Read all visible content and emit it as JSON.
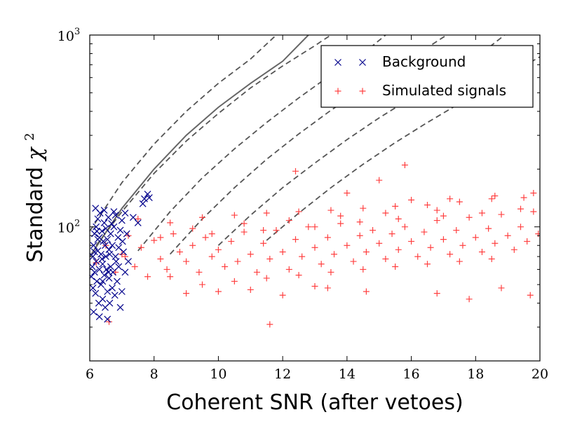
{
  "chart_data": {
    "type": "scatter",
    "title": "",
    "xlabel": "Coherent SNR (after vetoes)",
    "ylabel_text": "Standard",
    "ylabel_symbol": "χ",
    "ylabel_exponent": "2",
    "xlim": [
      6,
      20
    ],
    "ylim": [
      20,
      1000
    ],
    "yscale": "log",
    "x_ticks": [
      "6",
      "8",
      "10",
      "12",
      "14",
      "16",
      "18",
      "20"
    ],
    "y_ticks": [
      {
        "base": "10",
        "exponent": "2",
        "value": 100
      },
      {
        "base": "10",
        "exponent": "3",
        "value": 1000
      }
    ],
    "grid": false,
    "legend_position": "top-right",
    "series": [
      {
        "name": "Background",
        "marker": "x",
        "color": "#00008b",
        "points": [
          [
            6.05,
            55
          ],
          [
            6.08,
            62
          ],
          [
            6.1,
            48
          ],
          [
            6.1,
            70
          ],
          [
            6.12,
            80
          ],
          [
            6.15,
            58
          ],
          [
            6.15,
            92
          ],
          [
            6.18,
            45
          ],
          [
            6.2,
            66
          ],
          [
            6.2,
            100
          ],
          [
            6.22,
            52
          ],
          [
            6.25,
            75
          ],
          [
            6.25,
            110
          ],
          [
            6.28,
            40
          ],
          [
            6.3,
            60
          ],
          [
            6.3,
            88
          ],
          [
            6.32,
            118
          ],
          [
            6.35,
            50
          ],
          [
            6.35,
            72
          ],
          [
            6.38,
            95
          ],
          [
            6.4,
            42
          ],
          [
            6.4,
            64
          ],
          [
            6.42,
            84
          ],
          [
            6.45,
            105
          ],
          [
            6.45,
            56
          ],
          [
            6.48,
            38
          ],
          [
            6.5,
            70
          ],
          [
            6.5,
            98
          ],
          [
            6.52,
            60
          ],
          [
            6.55,
            46
          ],
          [
            6.55,
            86
          ],
          [
            6.58,
            112
          ],
          [
            6.6,
            54
          ],
          [
            6.6,
            76
          ],
          [
            6.62,
            40
          ],
          [
            6.65,
            92
          ],
          [
            6.65,
            62
          ],
          [
            6.68,
            104
          ],
          [
            6.7,
            48
          ],
          [
            6.7,
            80
          ],
          [
            6.72,
            58
          ],
          [
            6.75,
            100
          ],
          [
            6.78,
            44
          ],
          [
            6.8,
            70
          ],
          [
            6.8,
            115
          ],
          [
            6.85,
            52
          ],
          [
            6.88,
            88
          ],
          [
            6.9,
            62
          ],
          [
            6.95,
            96
          ],
          [
            7.0,
            46
          ],
          [
            7.0,
            108
          ],
          [
            7.05,
            74
          ],
          [
            7.1,
            58
          ],
          [
            7.15,
            92
          ],
          [
            7.2,
            66
          ],
          [
            6.12,
            36
          ],
          [
            6.3,
            34
          ],
          [
            6.55,
            33
          ],
          [
            6.95,
            38
          ],
          [
            6.18,
            125
          ],
          [
            6.45,
            122
          ],
          [
            6.75,
            120
          ],
          [
            7.1,
            118
          ],
          [
            7.35,
            112
          ],
          [
            7.65,
            132
          ],
          [
            7.7,
            140
          ],
          [
            7.8,
            148
          ],
          [
            7.85,
            142
          ],
          [
            7.5,
            105
          ],
          [
            6.22,
            95
          ],
          [
            6.38,
            68
          ],
          [
            6.48,
            80
          ],
          [
            6.62,
            72
          ],
          [
            6.82,
            66
          ],
          [
            6.4,
            52
          ],
          [
            6.25,
            86
          ],
          [
            6.58,
            58
          ],
          [
            6.9,
            78
          ],
          [
            7.02,
            84
          ],
          [
            6.15,
            74
          ]
        ]
      },
      {
        "name": "Simulated signals",
        "marker": "+",
        "color": "#ff4040",
        "points": [
          [
            6.2,
            65
          ],
          [
            6.5,
            80
          ],
          [
            6.8,
            58
          ],
          [
            7.0,
            72
          ],
          [
            7.2,
            90
          ],
          [
            7.4,
            62
          ],
          [
            7.6,
            78
          ],
          [
            7.8,
            55
          ],
          [
            8.0,
            85
          ],
          [
            8.2,
            68
          ],
          [
            8.4,
            60
          ],
          [
            8.6,
            92
          ],
          [
            8.8,
            74
          ],
          [
            9.0,
            66
          ],
          [
            9.2,
            80
          ],
          [
            9.4,
            58
          ],
          [
            9.6,
            88
          ],
          [
            9.8,
            70
          ],
          [
            10.0,
            76
          ],
          [
            10.2,
            62
          ],
          [
            10.4,
            84
          ],
          [
            10.6,
            66
          ],
          [
            10.8,
            94
          ],
          [
            11.0,
            72
          ],
          [
            11.2,
            58
          ],
          [
            11.4,
            82
          ],
          [
            11.6,
            68
          ],
          [
            11.8,
            96
          ],
          [
            12.0,
            74
          ],
          [
            12.2,
            60
          ],
          [
            12.4,
            86
          ],
          [
            12.6,
            70
          ],
          [
            12.8,
            100
          ],
          [
            13.0,
            78
          ],
          [
            13.2,
            64
          ],
          [
            13.4,
            88
          ],
          [
            13.6,
            72
          ],
          [
            13.8,
            104
          ],
          [
            14.0,
            80
          ],
          [
            14.2,
            66
          ],
          [
            14.4,
            90
          ],
          [
            14.6,
            74
          ],
          [
            14.8,
            96
          ],
          [
            15.0,
            82
          ],
          [
            15.2,
            68
          ],
          [
            15.4,
            92
          ],
          [
            15.6,
            76
          ],
          [
            15.8,
            100
          ],
          [
            16.0,
            84
          ],
          [
            16.2,
            70
          ],
          [
            16.4,
            94
          ],
          [
            16.6,
            78
          ],
          [
            16.8,
            108
          ],
          [
            17.0,
            86
          ],
          [
            17.2,
            72
          ],
          [
            17.4,
            96
          ],
          [
            17.6,
            80
          ],
          [
            17.8,
            112
          ],
          [
            18.0,
            88
          ],
          [
            18.2,
            74
          ],
          [
            18.4,
            98
          ],
          [
            18.6,
            82
          ],
          [
            18.8,
            116
          ],
          [
            19.0,
            90
          ],
          [
            19.2,
            76
          ],
          [
            19.4,
            100
          ],
          [
            19.6,
            84
          ],
          [
            19.8,
            120
          ],
          [
            19.95,
            92
          ],
          [
            8.5,
            55
          ],
          [
            9.5,
            50
          ],
          [
            10.5,
            52
          ],
          [
            11.5,
            54
          ],
          [
            12.5,
            56
          ],
          [
            13.5,
            58
          ],
          [
            14.5,
            60
          ],
          [
            15.5,
            62
          ],
          [
            16.5,
            64
          ],
          [
            17.5,
            66
          ],
          [
            18.5,
            68
          ],
          [
            7.5,
            110
          ],
          [
            8.5,
            105
          ],
          [
            9.5,
            112
          ],
          [
            10.5,
            115
          ],
          [
            11.5,
            118
          ],
          [
            12.5,
            120
          ],
          [
            13.5,
            122
          ],
          [
            14.5,
            125
          ],
          [
            15.5,
            128
          ],
          [
            16.5,
            130
          ],
          [
            17.5,
            135
          ],
          [
            18.5,
            140
          ],
          [
            19.5,
            142
          ],
          [
            12.4,
            195
          ],
          [
            14.0,
            150
          ],
          [
            15.0,
            175
          ],
          [
            15.8,
            210
          ],
          [
            13.4,
            48
          ],
          [
            11.6,
            31
          ],
          [
            6.6,
            32
          ],
          [
            16.8,
            45
          ],
          [
            17.8,
            42
          ],
          [
            18.8,
            48
          ],
          [
            19.7,
            44
          ],
          [
            9.0,
            45
          ],
          [
            10.0,
            46
          ],
          [
            11.0,
            47
          ],
          [
            12.0,
            44
          ],
          [
            13.0,
            49
          ],
          [
            14.6,
            46
          ],
          [
            19.8,
            150
          ],
          [
            18.6,
            145
          ],
          [
            17.2,
            140
          ],
          [
            16.0,
            138
          ],
          [
            9.2,
            98
          ],
          [
            10.8,
            104
          ],
          [
            12.2,
            108
          ],
          [
            13.8,
            114
          ],
          [
            15.2,
            118
          ],
          [
            16.8,
            122
          ],
          [
            8.2,
            88
          ],
          [
            9.8,
            92
          ],
          [
            11.4,
            96
          ],
          [
            13.0,
            100
          ],
          [
            14.4,
            106
          ],
          [
            15.6,
            110
          ],
          [
            17.0,
            114
          ],
          [
            18.2,
            118
          ],
          [
            19.4,
            124
          ],
          [
            7.1,
            70
          ]
        ]
      }
    ],
    "threshold_curves": [
      {
        "style": "solid",
        "color": "#666666",
        "points": [
          [
            6.0,
            70
          ],
          [
            7.0,
            125
          ],
          [
            8.0,
            200
          ],
          [
            9.0,
            300
          ],
          [
            10.0,
            420
          ],
          [
            11.0,
            560
          ],
          [
            12.0,
            730
          ],
          [
            12.8,
            1000
          ]
        ]
      },
      {
        "style": "dashed",
        "color": "#555555",
        "points": [
          [
            6.0,
            95
          ],
          [
            7.0,
            170
          ],
          [
            8.0,
            270
          ],
          [
            9.0,
            400
          ],
          [
            10.0,
            560
          ],
          [
            11.0,
            750
          ],
          [
            11.8,
            1000
          ]
        ]
      },
      {
        "style": "dashed",
        "color": "#555555",
        "points": [
          [
            6.2,
            80
          ],
          [
            7.0,
            120
          ],
          [
            8.0,
            190
          ],
          [
            9.0,
            280
          ],
          [
            10.0,
            390
          ],
          [
            11.0,
            530
          ],
          [
            12.0,
            690
          ],
          [
            13.0,
            880
          ],
          [
            13.5,
            1000
          ]
        ]
      },
      {
        "style": "dashed",
        "color": "#555555",
        "points": [
          [
            7.5,
            75
          ],
          [
            8.5,
            120
          ],
          [
            9.5,
            180
          ],
          [
            10.5,
            255
          ],
          [
            11.5,
            350
          ],
          [
            12.5,
            470
          ],
          [
            13.5,
            620
          ],
          [
            14.5,
            800
          ],
          [
            15.2,
            1000
          ]
        ]
      },
      {
        "style": "dashed",
        "color": "#555555",
        "points": [
          [
            8.5,
            72
          ],
          [
            9.5,
            110
          ],
          [
            10.5,
            160
          ],
          [
            11.5,
            225
          ],
          [
            12.5,
            305
          ],
          [
            13.5,
            405
          ],
          [
            14.5,
            525
          ],
          [
            15.5,
            680
          ],
          [
            16.5,
            860
          ],
          [
            17.1,
            1000
          ]
        ]
      },
      {
        "style": "dashed",
        "color": "#555555",
        "points": [
          [
            10.0,
            80
          ],
          [
            11.0,
            115
          ],
          [
            12.0,
            160
          ],
          [
            13.0,
            215
          ],
          [
            14.0,
            285
          ],
          [
            15.0,
            370
          ],
          [
            16.0,
            470
          ],
          [
            17.0,
            600
          ],
          [
            18.0,
            760
          ],
          [
            18.9,
            1000
          ]
        ]
      },
      {
        "style": "dashed",
        "color": "#555555",
        "points": [
          [
            11.5,
            85
          ],
          [
            12.5,
            118
          ],
          [
            13.5,
            160
          ],
          [
            14.5,
            212
          ],
          [
            15.5,
            275
          ],
          [
            16.5,
            350
          ],
          [
            17.5,
            440
          ],
          [
            18.5,
            550
          ],
          [
            19.5,
            690
          ],
          [
            20.0,
            770
          ]
        ]
      }
    ]
  }
}
